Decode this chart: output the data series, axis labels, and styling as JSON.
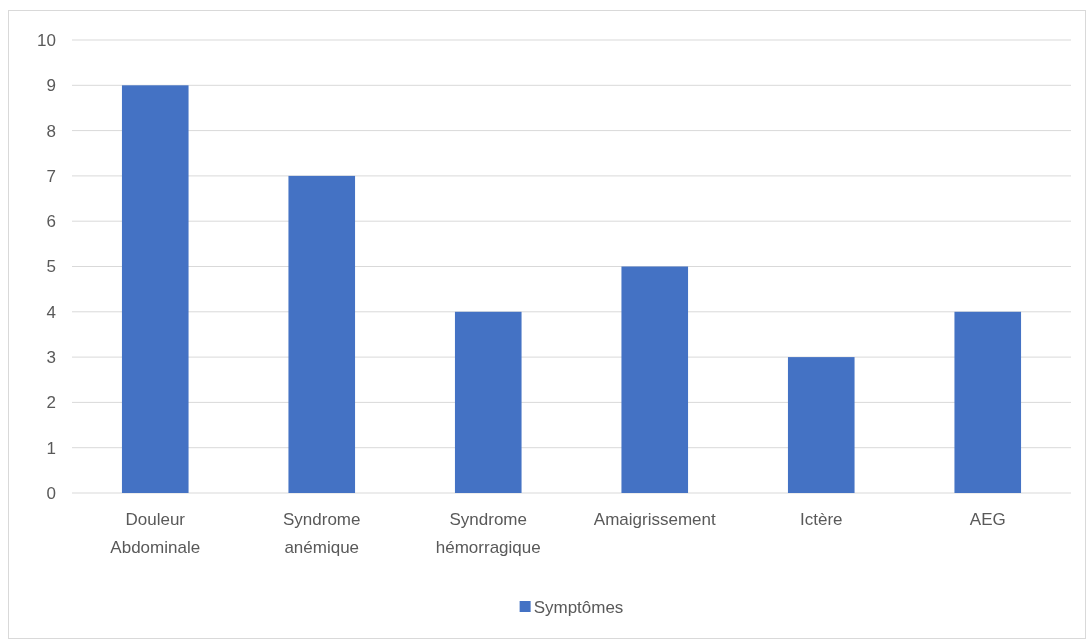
{
  "chart_data": {
    "type": "bar",
    "categories": [
      "Douleur Abdominale",
      "Syndrome anémique",
      "Syndrome hémorragique",
      "Amaigrissement",
      "Ictère",
      "AEG"
    ],
    "series": [
      {
        "name": "Symptômes",
        "color": "#4472c4",
        "values": [
          9,
          7,
          4,
          5,
          3,
          4
        ]
      }
    ],
    "ylim": [
      0,
      10
    ],
    "yticks": [
      0,
      1,
      2,
      3,
      4,
      5,
      6,
      7,
      8,
      9,
      10
    ],
    "grid": "y",
    "legend": "bottom"
  }
}
